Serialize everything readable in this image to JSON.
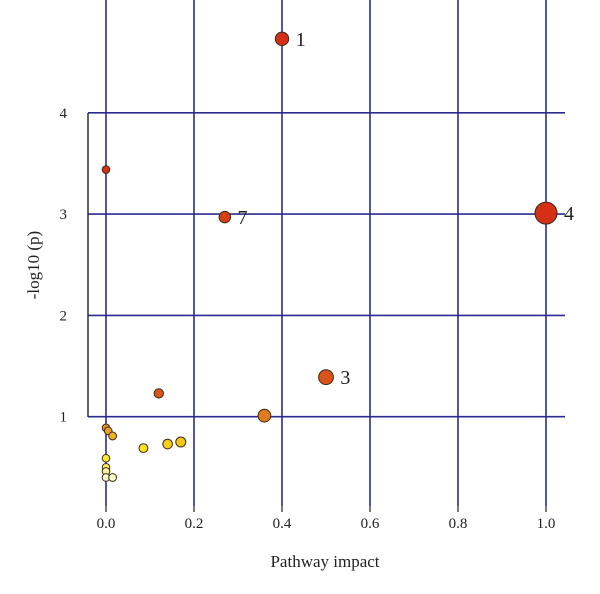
{
  "chart_data": {
    "type": "scatter",
    "title": "",
    "xlabel": "Pathway impact",
    "ylabel": "-log10 (p)",
    "xlim": [
      -0.035,
      1.035
    ],
    "ylim": [
      0.2,
      4.95
    ],
    "x_ticks": [
      "0.0",
      "0.2",
      "0.4",
      "0.6",
      "0.8",
      "1.0"
    ],
    "x_tick_values": [
      0.0,
      0.2,
      0.4,
      0.6,
      0.8,
      1.0
    ],
    "y_ticks": [
      "1",
      "2",
      "3",
      "4"
    ],
    "y_tick_values": [
      1,
      2,
      3,
      4
    ],
    "grid": true,
    "grid_color": "#2b2b8f",
    "size_encodes": "pathway impact",
    "color_encodes": "-log10 (p)",
    "color_scale": [
      "#ffffcc",
      "#ffeb3b",
      "#f0b400",
      "#e07a10",
      "#d63c10"
    ],
    "points": [
      {
        "x": 0.4,
        "y": 4.73,
        "label": "1",
        "color": "#d42f17"
      },
      {
        "x": 1.0,
        "y": 3.01,
        "label": "4",
        "color": "#d42f17"
      },
      {
        "x": 0.27,
        "y": 2.97,
        "label": "7",
        "color": "#d93d15"
      },
      {
        "x": 0.0,
        "y": 3.44,
        "label": "",
        "color": "#d42f17"
      },
      {
        "x": 0.5,
        "y": 1.39,
        "label": "3",
        "color": "#d9531a"
      },
      {
        "x": 0.12,
        "y": 1.23,
        "label": "",
        "color": "#d9561a"
      },
      {
        "x": 0.36,
        "y": 1.01,
        "label": "",
        "color": "#e07a1f"
      },
      {
        "x": 0.0,
        "y": 0.89,
        "label": "",
        "color": "#e8921f"
      },
      {
        "x": 0.005,
        "y": 0.86,
        "label": "",
        "color": "#eba12b"
      },
      {
        "x": 0.015,
        "y": 0.81,
        "label": "",
        "color": "#efb020"
      },
      {
        "x": 0.17,
        "y": 0.75,
        "label": "",
        "color": "#f5c518"
      },
      {
        "x": 0.14,
        "y": 0.73,
        "label": "",
        "color": "#f7cf1c"
      },
      {
        "x": 0.085,
        "y": 0.69,
        "label": "",
        "color": "#fbe21a"
      },
      {
        "x": 0.0,
        "y": 0.59,
        "label": "",
        "color": "#fde830"
      },
      {
        "x": 0.0,
        "y": 0.5,
        "label": "",
        "color": "#feef60"
      },
      {
        "x": 0.0,
        "y": 0.46,
        "label": "",
        "color": "#fff59a"
      },
      {
        "x": 0.0,
        "y": 0.4,
        "label": "",
        "color": "#ffffd6"
      },
      {
        "x": 0.015,
        "y": 0.4,
        "label": "",
        "color": "#ffffc8"
      }
    ]
  }
}
